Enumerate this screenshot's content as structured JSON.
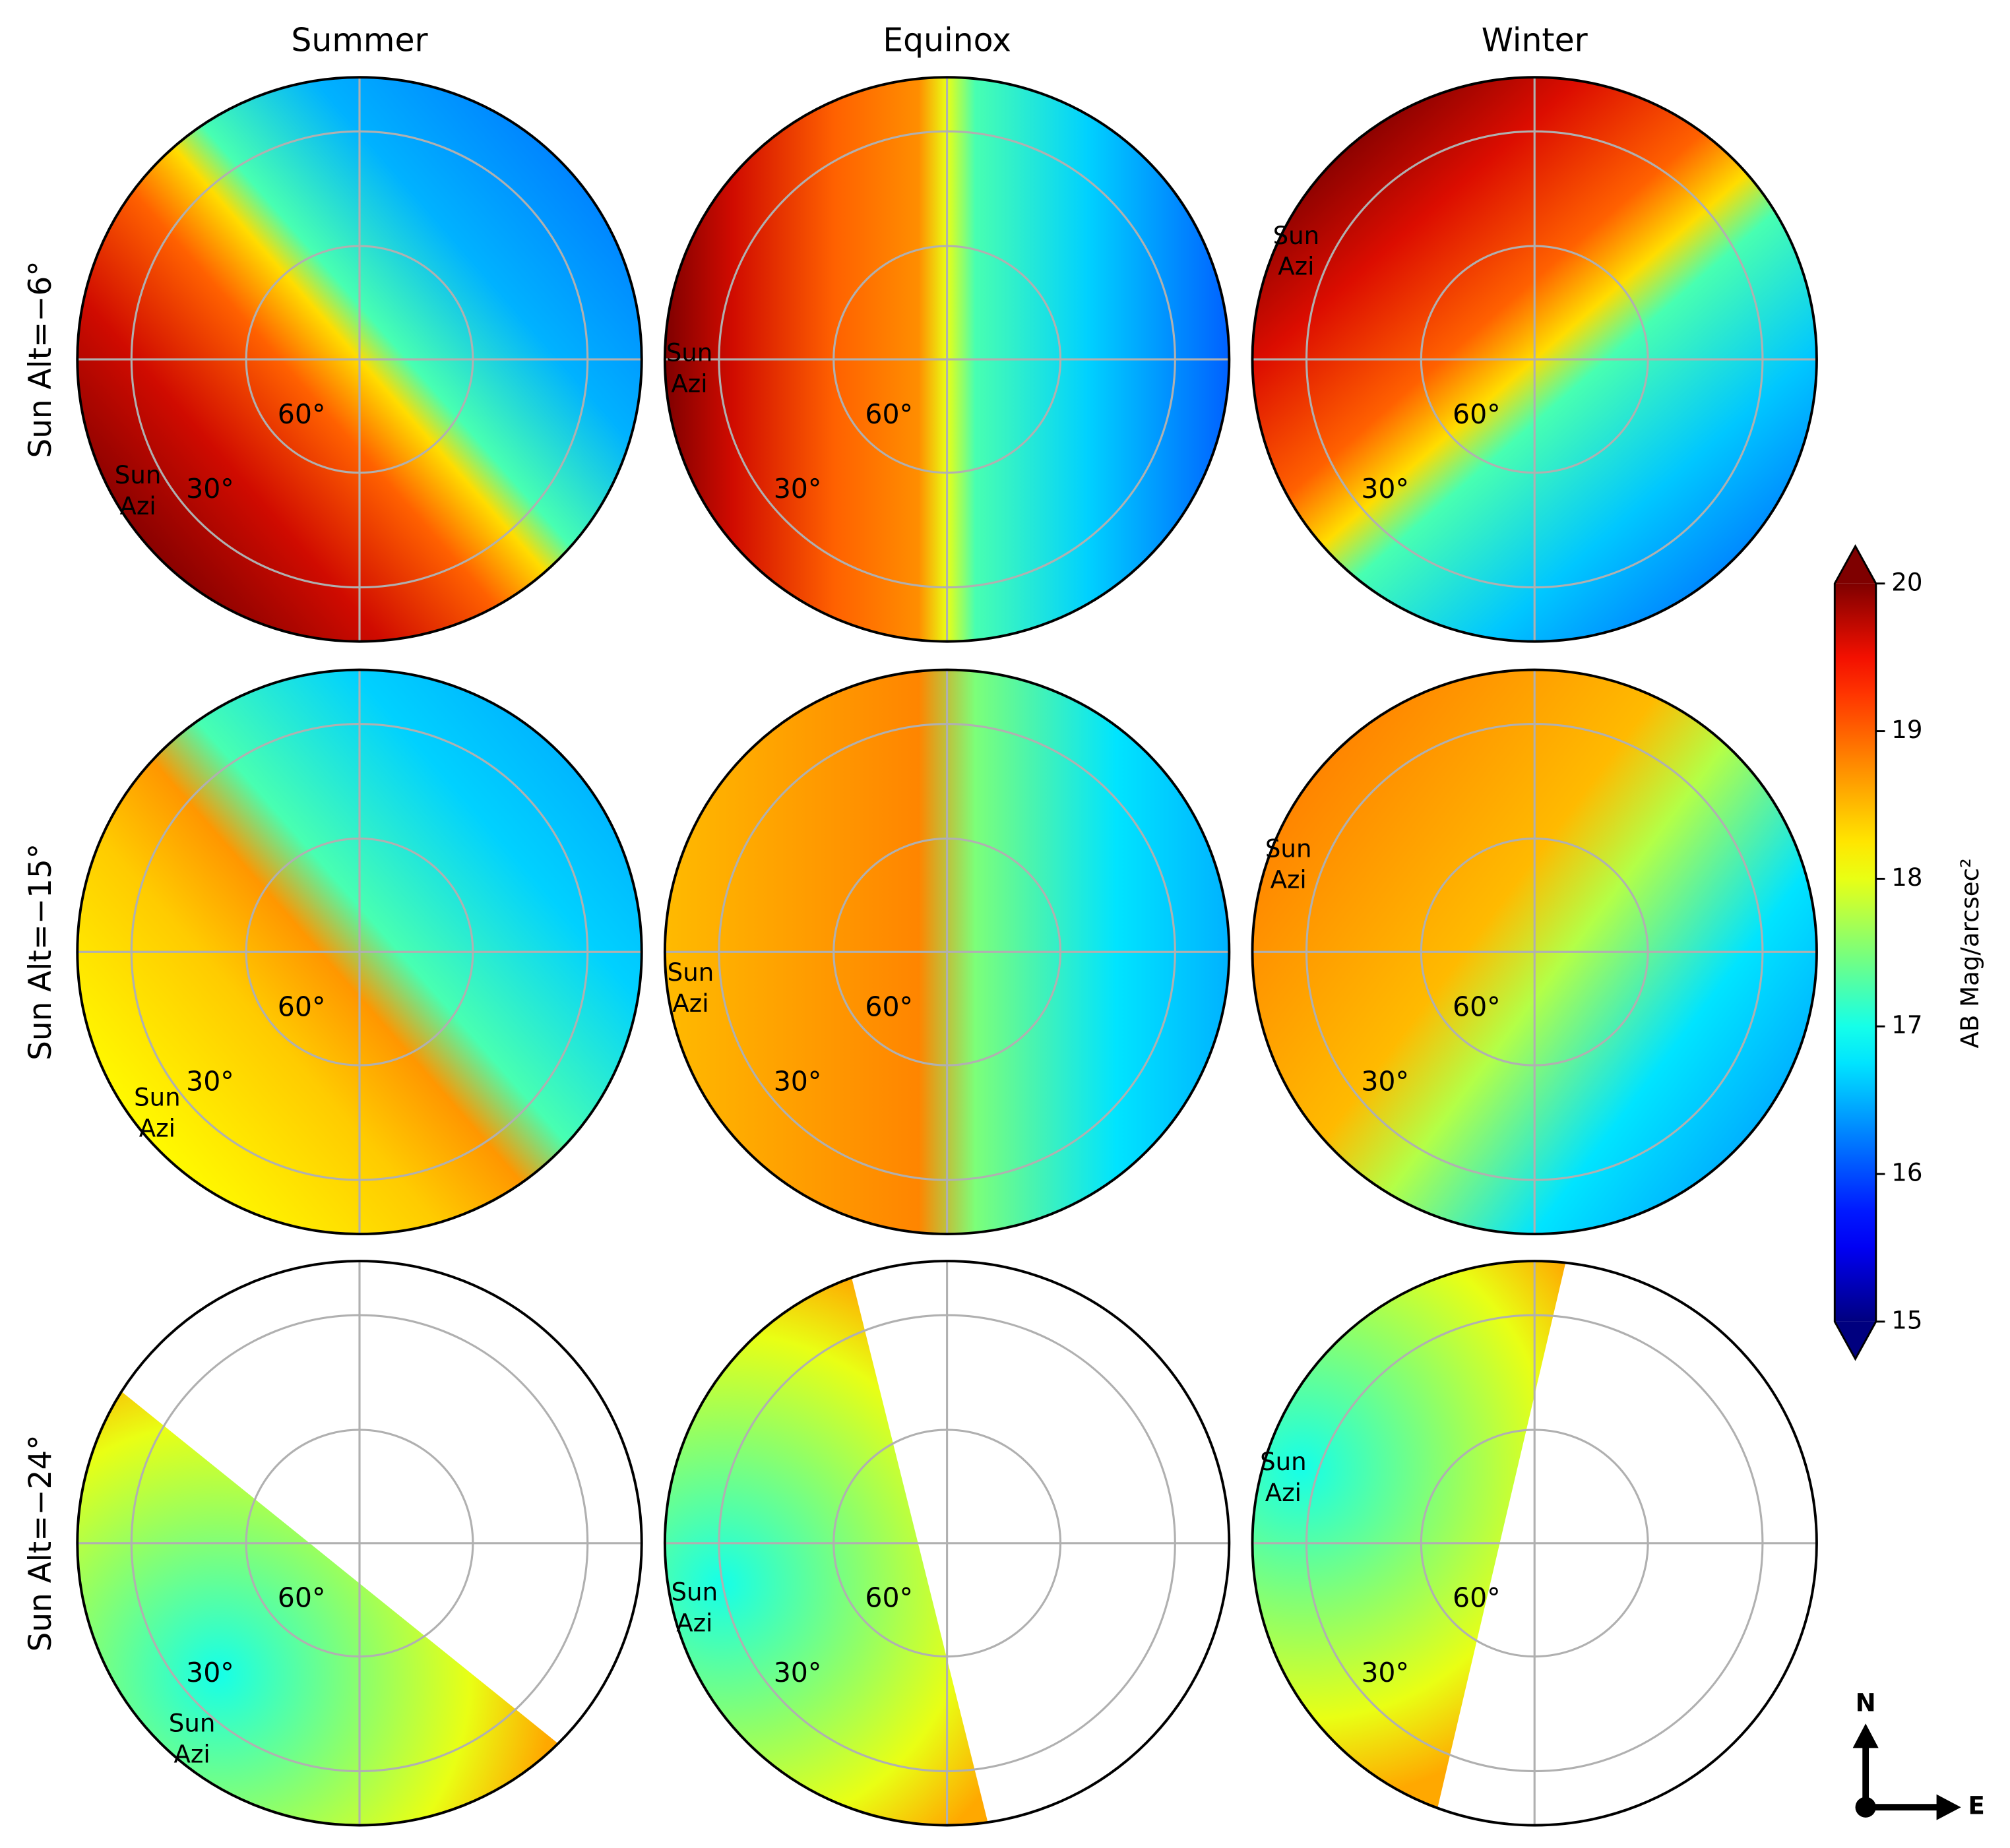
{
  "columns": [
    "Summer",
    "Equinox",
    "Winter"
  ],
  "rows": [
    "Sun Alt=−6°",
    "Sun Alt=−15°",
    "Sun Alt=−24°"
  ],
  "radial_labels": [
    "60°",
    "30°"
  ],
  "sun_label": [
    "Sun",
    "Azi"
  ],
  "colorbar": {
    "label": "AB Mag/arcsec²",
    "lim": [
      15,
      20
    ],
    "ticks": [
      15,
      16,
      17,
      18,
      19,
      20
    ],
    "colormap": "jet"
  },
  "compass": {
    "north": "N",
    "east": "E"
  }
}
